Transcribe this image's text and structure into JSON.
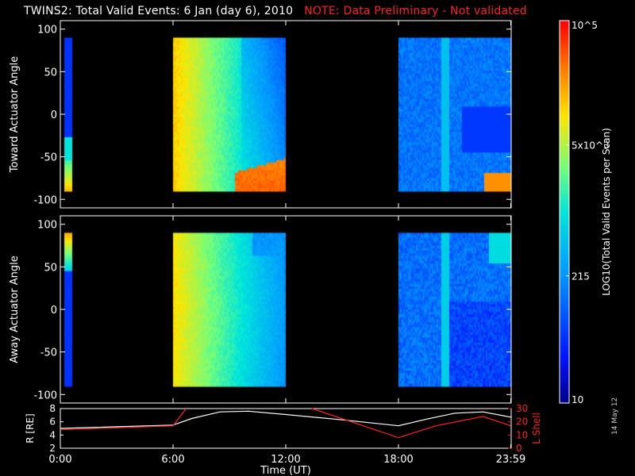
{
  "header": {
    "title": "TWINS2: Total Valid Events:  6 Jan (day   6), 2010",
    "note": "NOTE: Data Preliminary - Not validated"
  },
  "footer": {
    "date_stamp": "14 May 12"
  },
  "colors": {
    "note": "#ff2020",
    "axis": "#ffffff",
    "lshell": "#ff2020",
    "radius": "#ffffff"
  },
  "chart_data": [
    {
      "type": "heatmap",
      "ylabel": "Toward Actuator Angle",
      "ylim": [
        -110,
        110
      ],
      "yticks": [
        100,
        50,
        0,
        -50,
        -100
      ],
      "xlim": [
        0,
        24
      ],
      "data_range": [
        -90,
        90
      ],
      "segments": [
        {
          "start": 0.2,
          "end": 0.6,
          "profile": "edge"
        },
        {
          "start": 6.0,
          "end": 11.95,
          "profile": "warm"
        },
        {
          "start": 18.0,
          "end": 24.0,
          "profile": "cool-toward"
        }
      ]
    },
    {
      "type": "heatmap",
      "ylabel": "Away Actuator Angle",
      "ylim": [
        -110,
        110
      ],
      "yticks": [
        100,
        50,
        0,
        -50,
        -100
      ],
      "xlim": [
        0,
        24
      ],
      "data_range": [
        -90,
        90
      ],
      "segments": [
        {
          "start": 0.2,
          "end": 0.6,
          "profile": "edge-away"
        },
        {
          "start": 6.0,
          "end": 11.95,
          "profile": "warm-away"
        },
        {
          "start": 18.0,
          "end": 24.0,
          "profile": "cool-away"
        }
      ]
    },
    {
      "type": "line",
      "ylabel": "R [RE]",
      "ylabel_right": "L Shell",
      "xlabel": "Time (UT)",
      "xlim": [
        0,
        24
      ],
      "ylim": [
        2,
        8
      ],
      "yticks": [
        2,
        4,
        6,
        8
      ],
      "yticks_right": [
        0,
        10,
        20,
        30
      ],
      "ylim_right": [
        0,
        30
      ],
      "xtick_labels": [
        "0:00",
        "6:00",
        "12:00",
        "18:00",
        "23:59"
      ],
      "xtick_values": [
        0,
        6,
        12,
        18,
        23.98
      ],
      "series": [
        {
          "color": "#ffffff",
          "x": [
            0,
            6,
            7,
            8.5,
            10,
            12,
            15,
            18,
            19.5,
            21,
            22.5,
            23.98
          ],
          "y": [
            5.0,
            5.5,
            6.5,
            7.5,
            7.6,
            7.1,
            6.3,
            5.4,
            6.4,
            7.3,
            7.5,
            6.7
          ]
        },
        {
          "color": "#ff2020",
          "segments": [
            {
              "x": [
                0,
                6,
                6.7
              ],
              "y": [
                14,
                17,
                30
              ]
            },
            {
              "x": [
                13.4,
                18,
                20,
                22.5,
                23.98
              ],
              "y": [
                30,
                8,
                17,
                24,
                17
              ]
            }
          ]
        }
      ]
    },
    {
      "type": "colorbar",
      "label": "LOG10(Total Valid Events per Scan)",
      "tick_labels": [
        "10^5",
        "5x10^3",
        "215",
        "10"
      ],
      "tick_values": [
        5,
        3.7,
        2.33,
        1
      ],
      "range": [
        1,
        5
      ]
    }
  ]
}
